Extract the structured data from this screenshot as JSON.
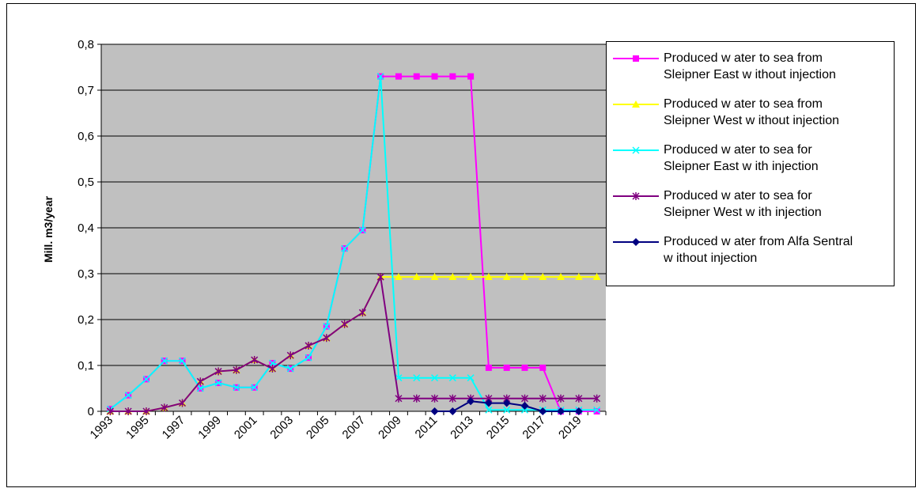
{
  "chart_data": {
    "type": "line",
    "title": "",
    "xlabel": "",
    "ylabel": "Mill. m3/year",
    "ylim": [
      0,
      0.8
    ],
    "yticks": [
      "0",
      "0,1",
      "0,2",
      "0,3",
      "0,4",
      "0,5",
      "0,6",
      "0,7",
      "0,8"
    ],
    "x_tick_labels": [
      "1993",
      "1995",
      "1997",
      "1999",
      "2001",
      "2003",
      "2005",
      "2007",
      "2009",
      "2011",
      "2013",
      "2015",
      "2017",
      "2019"
    ],
    "grid": true,
    "plot_background": "#c0c0c0",
    "legend_position": "right",
    "x": [
      1993,
      1994,
      1995,
      1996,
      1997,
      1998,
      1999,
      2000,
      2001,
      2002,
      2003,
      2004,
      2005,
      2006,
      2007,
      2008,
      2009,
      2010,
      2011,
      2012,
      2013,
      2014,
      2015,
      2016,
      2017,
      2018,
      2019,
      2020
    ],
    "series": [
      {
        "name": "Produced water to sea from Sleipner East without injection",
        "legend_lines": [
          "Produced w ater to sea from",
          "Sleipner East w ithout injection"
        ],
        "color": "#ff00ff",
        "marker": "square",
        "values": [
          0.005,
          0.035,
          0.07,
          0.11,
          0.11,
          0.05,
          0.062,
          0.052,
          0.052,
          0.105,
          0.093,
          0.117,
          0.185,
          0.355,
          0.395,
          0.73,
          0.73,
          0.73,
          0.73,
          0.73,
          0.73,
          0.095,
          0.095,
          0.095,
          0.095,
          0.0,
          0.0,
          0.0
        ]
      },
      {
        "name": "Produced water to sea from Sleipner West without injection",
        "legend_lines": [
          "Produced w ater to sea from",
          "Sleipner West w ithout injection"
        ],
        "color": "#ffff00",
        "marker": "triangle",
        "values": [
          0.0,
          0.0,
          0.0,
          0.008,
          0.018,
          0.065,
          0.087,
          0.09,
          0.112,
          0.093,
          0.122,
          0.143,
          0.16,
          0.19,
          0.215,
          0.293,
          0.293,
          0.293,
          0.293,
          0.293,
          0.293,
          0.293,
          0.293,
          0.293,
          0.293,
          0.293,
          0.293,
          0.293
        ]
      },
      {
        "name": "Produced water to sea for Sleipner East with injection",
        "legend_lines": [
          "Produced w ater to sea for",
          "Sleipner East w ith injection"
        ],
        "color": "#00ffff",
        "marker": "x",
        "values": [
          0.005,
          0.035,
          0.07,
          0.11,
          0.11,
          0.05,
          0.062,
          0.052,
          0.052,
          0.105,
          0.093,
          0.117,
          0.185,
          0.355,
          0.395,
          0.73,
          0.073,
          0.073,
          0.073,
          0.073,
          0.073,
          0.003,
          0.003,
          0.003,
          0.003,
          0.003,
          0.003,
          0.003
        ]
      },
      {
        "name": "Produced water to sea for Sleipner West with injection",
        "legend_lines": [
          "Produced w ater to sea for",
          "Sleipner West w ith injection"
        ],
        "color": "#800080",
        "marker": "star",
        "values": [
          0.0,
          0.0,
          0.0,
          0.008,
          0.018,
          0.065,
          0.087,
          0.09,
          0.112,
          0.093,
          0.122,
          0.143,
          0.16,
          0.19,
          0.215,
          0.293,
          0.028,
          0.028,
          0.028,
          0.028,
          0.028,
          0.028,
          0.028,
          0.028,
          0.028,
          0.028,
          0.028,
          0.028
        ]
      },
      {
        "name": "Produced water from Alfa Sentral without injection",
        "legend_lines": [
          "Produced w ater from Alfa Sentral",
          "w ithout injection"
        ],
        "color": "#000080",
        "marker": "diamond",
        "values": [
          null,
          null,
          null,
          null,
          null,
          null,
          null,
          null,
          null,
          null,
          null,
          null,
          null,
          null,
          null,
          null,
          null,
          null,
          0.0,
          0.0,
          0.022,
          0.018,
          0.018,
          0.012,
          0.0,
          0.0,
          0.0,
          null
        ]
      }
    ]
  }
}
